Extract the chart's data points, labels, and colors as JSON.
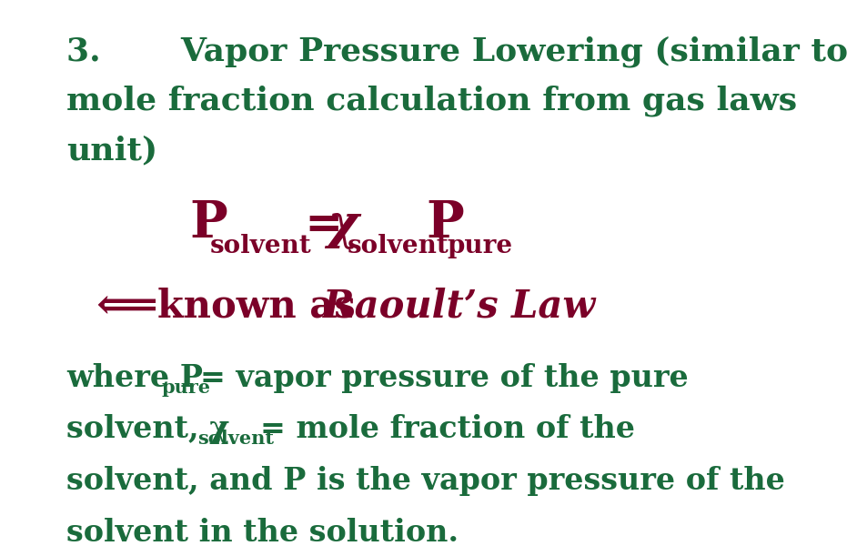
{
  "bg_color": "#ffffff",
  "dark_green": "#1a6b3c",
  "dark_red": "#7b0028",
  "title_line1": "3.       Vapor Pressure Lowering (similar to",
  "title_line2": "mole fraction calculation from gas laws",
  "title_line3": "unit)",
  "title_fontsize": 26,
  "formula_fontsize": 36,
  "formula_sub_fontsize": 20,
  "raoult_fontsize": 30,
  "where_fontsize": 24,
  "where_sub_fontsize": 15
}
